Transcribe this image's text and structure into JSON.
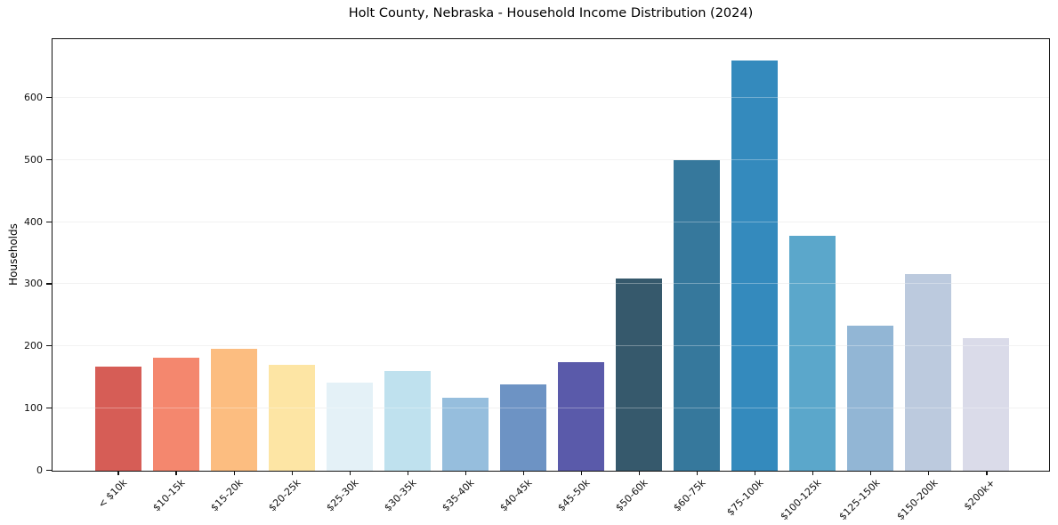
{
  "chart_data": {
    "type": "bar",
    "title": "Holt County, Nebraska - Household Income Distribution (2024)",
    "xlabel": "",
    "ylabel": "Households",
    "categories": [
      "< $10k",
      "$10-15k",
      "$15-20k",
      "$20-25k",
      "$25-30k",
      "$30-35k",
      "$35-40k",
      "$40-45k",
      "$45-50k",
      "$50-60k",
      "$60-75k",
      "$75-100k",
      "$100-125k",
      "$125-150k",
      "$150-200k",
      "$200k+"
    ],
    "values": [
      168,
      182,
      196,
      170,
      142,
      160,
      117,
      139,
      175,
      310,
      500,
      660,
      378,
      233,
      317,
      214
    ],
    "bar_colors": [
      "#d65d56",
      "#f4876e",
      "#fcbd80",
      "#fde5a4",
      "#e4f1f7",
      "#bfe1ee",
      "#96bedd",
      "#6d93c4",
      "#5a5aaa",
      "#36596c",
      "#36789c",
      "#348abd",
      "#5ba7cb",
      "#92b6d5",
      "#bccade",
      "#dadbe9"
    ],
    "yticks": [
      0,
      100,
      200,
      300,
      400,
      500,
      600
    ],
    "ylim": [
      0,
      693
    ],
    "grid": true,
    "legend": false,
    "x_tick_rotation_deg": 45
  }
}
